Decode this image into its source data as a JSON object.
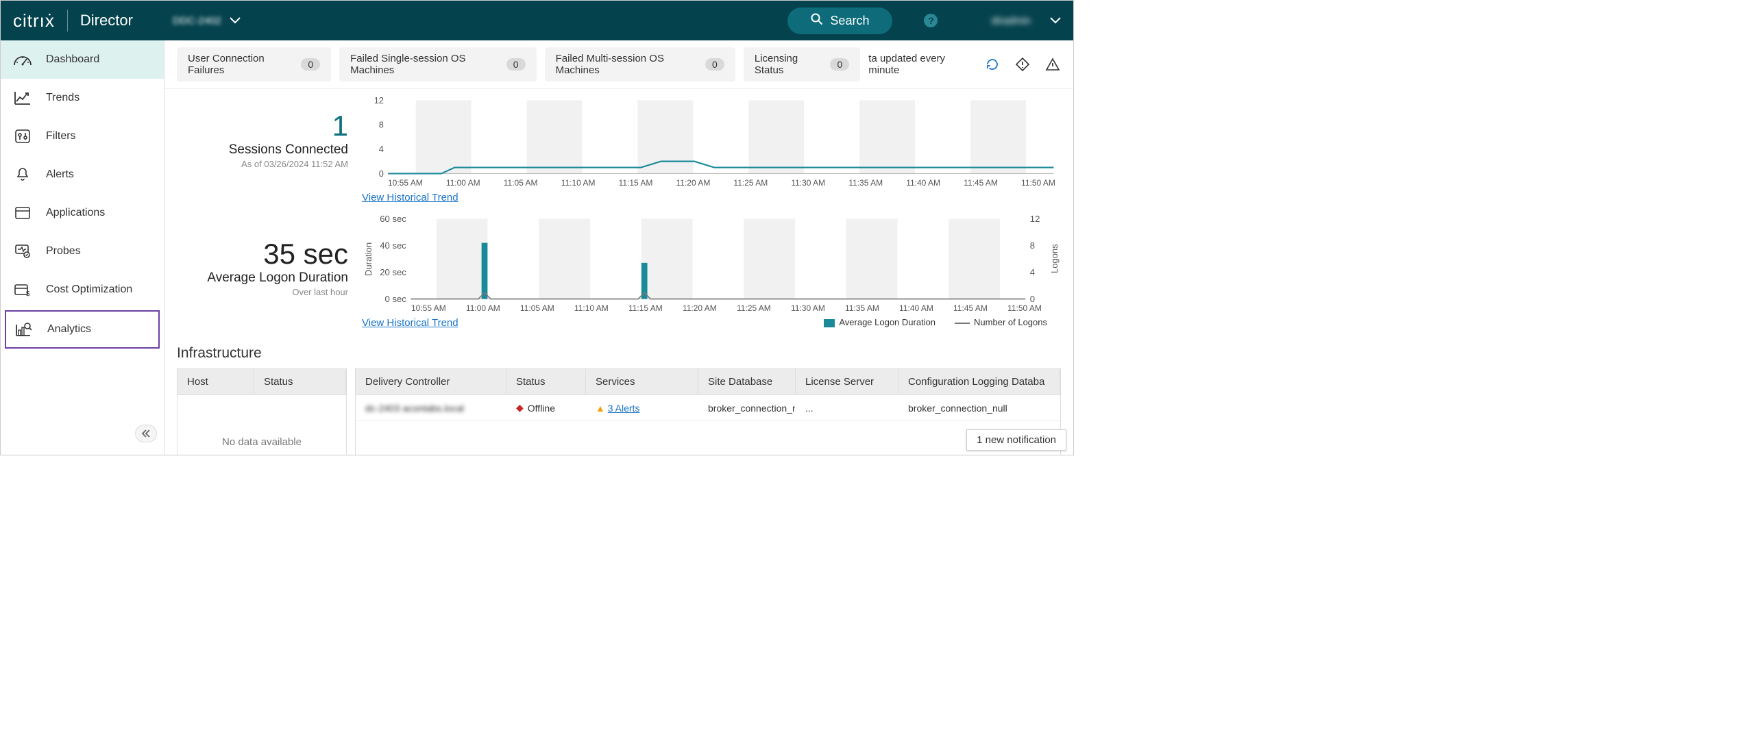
{
  "header": {
    "brand": "citrıẋ",
    "title": "Director",
    "site": "DDC-2402",
    "search_label": "Search",
    "user": "diradmin"
  },
  "sidebar": {
    "items": [
      {
        "label": "Dashboard",
        "icon": "gauge"
      },
      {
        "label": "Trends",
        "icon": "trend"
      },
      {
        "label": "Filters",
        "icon": "sliders"
      },
      {
        "label": "Alerts",
        "icon": "bell"
      },
      {
        "label": "Applications",
        "icon": "window"
      },
      {
        "label": "Probes",
        "icon": "probe"
      },
      {
        "label": "Cost Optimization",
        "icon": "dollar"
      },
      {
        "label": "Analytics",
        "icon": "analytics"
      }
    ]
  },
  "pills": [
    {
      "label": "User Connection Failures",
      "count": "0"
    },
    {
      "label": "Failed Single-session OS Machines",
      "count": "0"
    },
    {
      "label": "Failed Multi-session OS Machines",
      "count": "0"
    },
    {
      "label": "Licensing Status",
      "count": "0"
    }
  ],
  "update_text": "ta updated every minute",
  "sessions": {
    "value": "1",
    "label": "Sessions Connected",
    "as_of": "As of 03/26/2024 11:52 AM",
    "historical_link": "View Historical Trend",
    "chart": {
      "type": "line",
      "yticks": [
        "0",
        "4",
        "8",
        "12"
      ],
      "xticks": [
        "10:55 AM",
        "11:00 AM",
        "11:05 AM",
        "11:10 AM",
        "11:15 AM",
        "11:20 AM",
        "11:25 AM",
        "11:30 AM",
        "11:35 AM",
        "11:40 AM",
        "11:45 AM",
        "11:50 AM"
      ],
      "line_color": "#1a8a9a",
      "grid_color": "#f1f1f1",
      "points": [
        [
          0,
          0
        ],
        [
          8,
          0
        ],
        [
          10,
          1
        ],
        [
          38,
          1
        ],
        [
          41,
          2
        ],
        [
          46,
          2
        ],
        [
          49,
          1
        ],
        [
          100,
          1
        ]
      ]
    }
  },
  "logon": {
    "value": "35 sec",
    "label": "Average Logon Duration",
    "sub": "Over last hour",
    "historical_link": "View Historical Trend",
    "legend_bar": "Average Logon Duration",
    "legend_line": "Number of Logons",
    "chart": {
      "type": "bar+line",
      "ylabel_left": "Duration",
      "ylabel_right": "Logons",
      "yticks_left": [
        "0 sec",
        "20 sec",
        "40 sec",
        "60 sec"
      ],
      "yticks_right": [
        "0",
        "4",
        "8",
        "12"
      ],
      "xticks": [
        "10:55 AM",
        "11:00 AM",
        "11:05 AM",
        "11:10 AM",
        "11:15 AM",
        "11:20 AM",
        "11:25 AM",
        "11:30 AM",
        "11:35 AM",
        "11:40 AM",
        "11:45 AM",
        "11:50 AM"
      ],
      "bar_color": "#1a8a9a",
      "line_color": "#777777",
      "grid_color": "#f1f1f1",
      "bars": [
        {
          "x": 12,
          "h": 70
        },
        {
          "x": 38,
          "h": 45
        }
      ],
      "line_points": [
        [
          0,
          0
        ],
        [
          11,
          0
        ],
        [
          12,
          8
        ],
        [
          13,
          0
        ],
        [
          37,
          0
        ],
        [
          38,
          8
        ],
        [
          39,
          0
        ],
        [
          100,
          0
        ]
      ]
    }
  },
  "infra": {
    "title": "Infrastructure",
    "left_headers": [
      "Host",
      "Status"
    ],
    "left_empty": "No data available",
    "right_headers": [
      "Delivery Controller",
      "Status",
      "Services",
      "Site Database",
      "License Server",
      "Configuration Logging Databa"
    ],
    "row": {
      "dc": "dc-2403 acontabs.local",
      "status": "Offline",
      "services": "3 Alerts",
      "site_db": "broker_connection_n",
      "license": "...",
      "config": "broker_connection_null"
    }
  },
  "notification": "1 new notification"
}
